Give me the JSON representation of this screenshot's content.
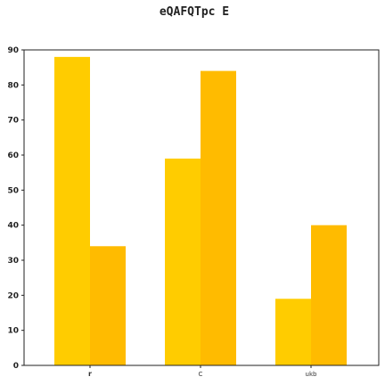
{
  "chart_data": {
    "type": "bar",
    "title": "eQAFQTpc  E",
    "xlabel": "",
    "ylabel": "",
    "categories": [
      "r",
      "C",
      "ukb"
    ],
    "series": [
      {
        "values": [
          88,
          59,
          19
        ],
        "color": "#FFCC00"
      },
      {
        "values": [
          34,
          84,
          40
        ],
        "color": "#FFBB00"
      }
    ],
    "ylim": [
      0,
      90
    ],
    "yticks": [
      "0",
      "10",
      "20",
      "30",
      "40",
      "50",
      "60",
      "70",
      "80",
      "90"
    ],
    "grid": false,
    "legend": "none"
  }
}
